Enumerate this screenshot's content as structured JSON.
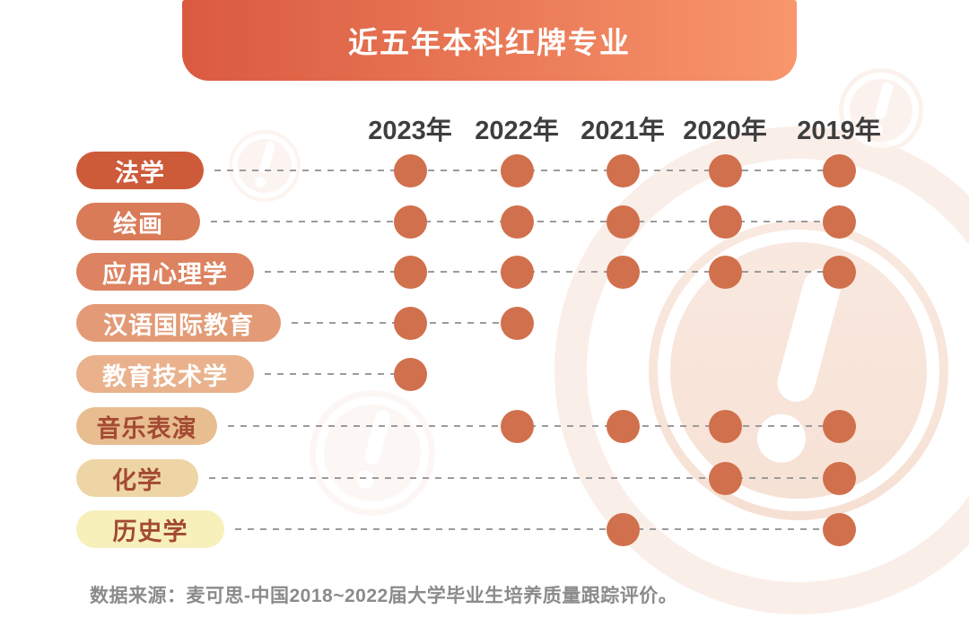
{
  "banner": {
    "title": "近五年本科红牌专业"
  },
  "source_note": "数据来源：麦可思-中国2018~2022届大学毕业生培养质量跟踪评价。",
  "colors": {
    "banner_gradient_left": "#da5a40",
    "banner_gradient_right": "#f8966c",
    "banner_text": "#ffffff",
    "dot": "#d1704c",
    "dashed_line": "#9b9b9b",
    "year_label": "#3e3e3e",
    "source_text": "#8b8b8b",
    "watermark": "#f8e5da"
  },
  "chart_data": {
    "type": "heatmap",
    "title": "近五年本科红牌专业",
    "columns": [
      "2023年",
      "2022年",
      "2021年",
      "2020年",
      "2019年"
    ],
    "rows": [
      {
        "label": "法学",
        "pill_color": "#cd5a39",
        "label_color": "#ffffff",
        "flagged": [
          1,
          1,
          1,
          1,
          1
        ]
      },
      {
        "label": "绘画",
        "pill_color": "#d97b57",
        "label_color": "#ffffff",
        "flagged": [
          1,
          1,
          1,
          1,
          1
        ]
      },
      {
        "label": "应用心理学",
        "pill_color": "#dd8361",
        "label_color": "#ffffff",
        "flagged": [
          1,
          1,
          1,
          1,
          1
        ]
      },
      {
        "label": "汉语国际教育",
        "pill_color": "#e29b76",
        "label_color": "#ffffff",
        "flagged": [
          1,
          1,
          0,
          0,
          0
        ]
      },
      {
        "label": "教育技术学",
        "pill_color": "#e9b28c",
        "label_color": "#ffffff",
        "flagged": [
          1,
          0,
          0,
          0,
          0
        ]
      },
      {
        "label": "音乐表演",
        "pill_color": "#e8bd8f",
        "label_color": "#a34a33",
        "flagged": [
          0,
          1,
          1,
          1,
          1
        ]
      },
      {
        "label": "化学",
        "pill_color": "#eed5a5",
        "label_color": "#a34a33",
        "flagged": [
          0,
          0,
          0,
          1,
          1
        ]
      },
      {
        "label": "历史学",
        "pill_color": "#f7f0ba",
        "label_color": "#a34a33",
        "flagged": [
          0,
          0,
          1,
          0,
          1
        ]
      }
    ],
    "legend": "dot = major flagged as red-card that year",
    "grid": "dashed row guides"
  }
}
